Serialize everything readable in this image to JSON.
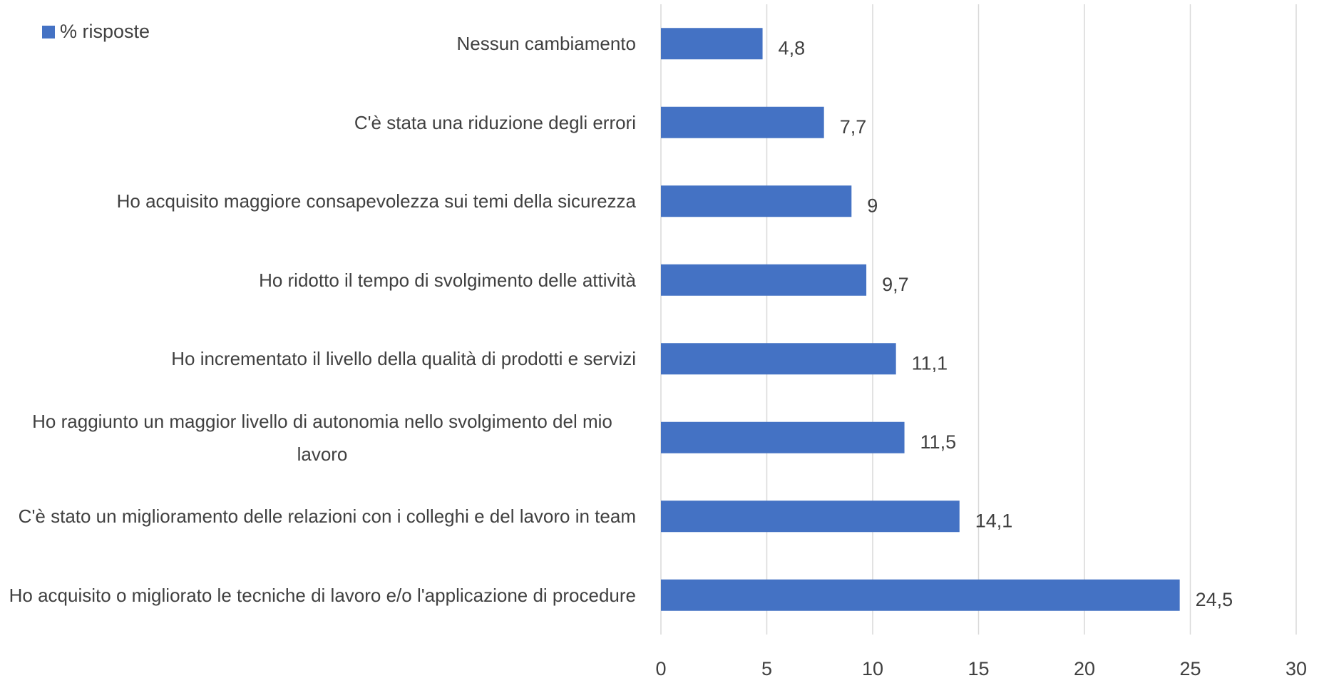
{
  "chart_data": {
    "type": "bar",
    "orientation": "horizontal",
    "categories": [
      "Nessun cambiamento",
      "C'è stata una riduzione degli errori",
      "Ho acquisito maggiore consapevolezza sui temi della sicurezza",
      "Ho ridotto il tempo di svolgimento delle attività",
      "Ho incrementato il livello della qualità di prodotti e servizi",
      "Ho raggiunto un maggior livello di autonomia nello svolgimento del mio lavoro",
      "C'è stato un miglioramento delle relazioni con i colleghi e del lavoro in team",
      "Ho acquisito o migliorato le tecniche di lavoro e/o l'applicazione di procedure"
    ],
    "series": [
      {
        "name": "% risposte",
        "color": "#4472c4",
        "values": [
          4.8,
          7.7,
          9,
          9.7,
          11.1,
          11.5,
          14.1,
          24.5
        ],
        "value_labels": [
          "4,8",
          "7,7",
          "9",
          "9,7",
          "11,1",
          "11,5",
          "14,1",
          "24,5"
        ]
      }
    ],
    "xlim": [
      0,
      30
    ],
    "xticks": [
      0,
      5,
      10,
      15,
      20,
      25,
      30
    ],
    "grid": true,
    "legend": "top-left"
  }
}
